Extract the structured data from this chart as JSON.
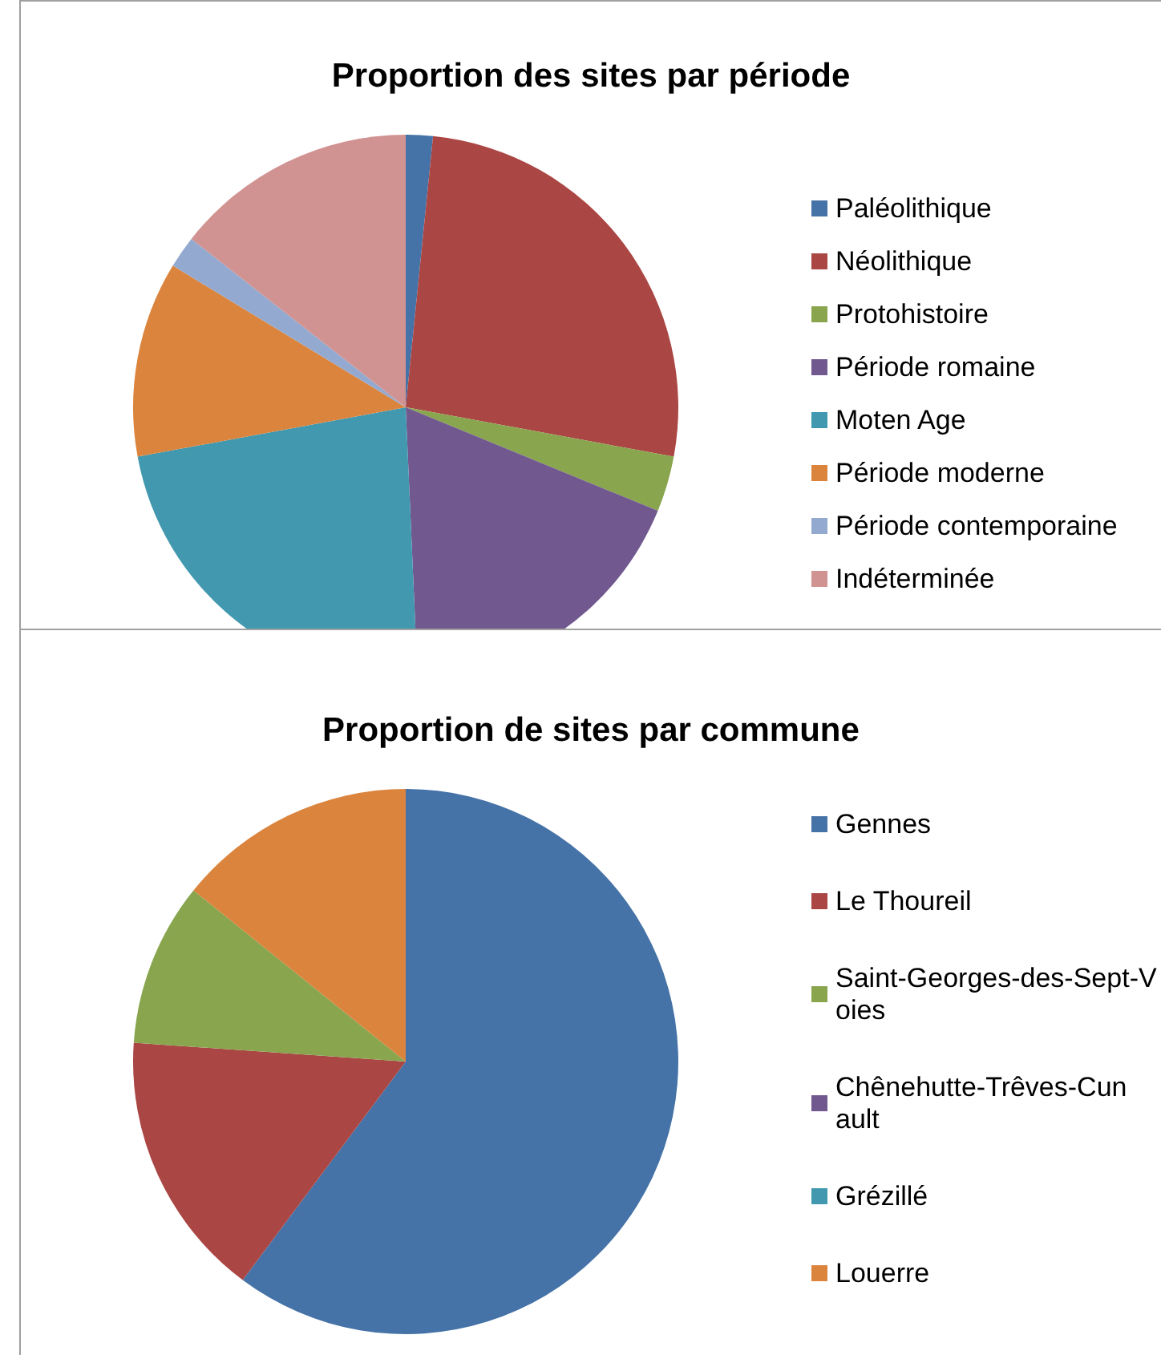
{
  "chart_data": [
    {
      "type": "pie",
      "title": "Proportion des sites par période",
      "legend": "right",
      "categories": [
        "Paléolithique",
        "Néolithique",
        "Protohistoire",
        "Période romaine",
        "Moten Age",
        "Période moderne",
        "Période contemporaine",
        "Indéterminée"
      ],
      "values": [
        1.6,
        26.3,
        3.3,
        18.1,
        22.8,
        11.6,
        1.9,
        14.4
      ],
      "colors": [
        "#4572a7",
        "#aa4643",
        "#89a54e",
        "#71588f",
        "#4198af",
        "#db843d",
        "#93a9cf",
        "#d19392"
      ]
    },
    {
      "type": "pie",
      "title": "Proportion de sites par commune",
      "legend": "right",
      "categories": [
        "Gennes",
        "Le Thoureil",
        "Saint-Georges-des-Sept-Voies",
        "Chênehutte-Trêves-Cunault",
        "Grézillé",
        "Louerre"
      ],
      "values": [
        60.2,
        15.9,
        9.7,
        0,
        0,
        14.2
      ],
      "colors": [
        "#4572a7",
        "#aa4643",
        "#89a54e",
        "#71588f",
        "#4198af",
        "#db843d"
      ]
    }
  ]
}
